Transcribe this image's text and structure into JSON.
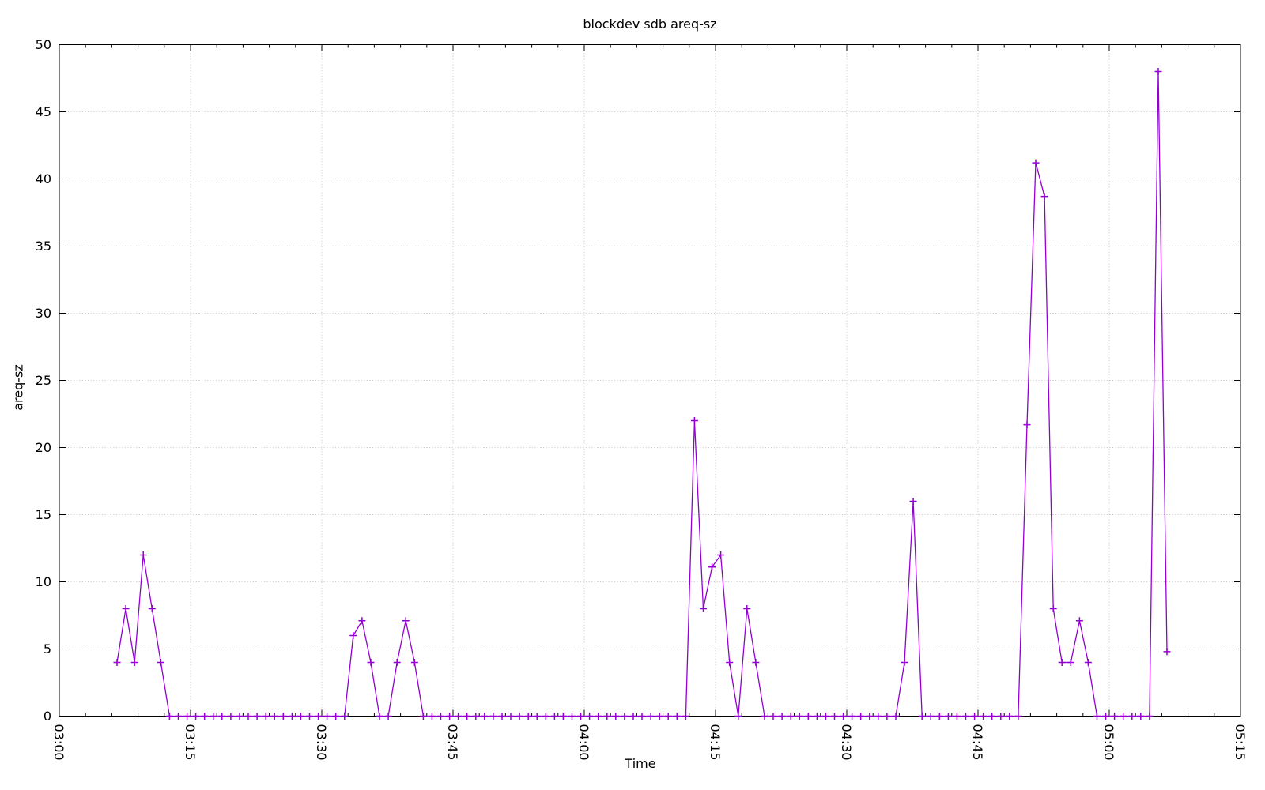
{
  "window": {
    "title": "blockdev sdb areq-sz"
  },
  "chart_data": {
    "type": "line",
    "title": "blockdev sdb areq-sz",
    "xlabel": "Time",
    "ylabel": "areq-sz",
    "legend": "none",
    "grid": "dotted",
    "line_color": "#9400d3",
    "marker": "plus",
    "x_axis": {
      "tick_labels": [
        "03:00",
        "03:15",
        "03:30",
        "03:45",
        "04:00",
        "04:15",
        "04:30",
        "04:45",
        "05:00",
        "05:15"
      ],
      "total_minutes": 135,
      "major_tick_minutes": 15,
      "minor_tick_minutes": 3,
      "tick_label_rotation_deg": 90
    },
    "y_axis": {
      "min": 0,
      "max": 50,
      "tick_interval": 5,
      "tick_labels": [
        "0",
        "5",
        "10",
        "15",
        "20",
        "25",
        "30",
        "35",
        "40",
        "45",
        "50"
      ]
    },
    "series": [
      {
        "name": "areq-sz",
        "x_unit": "minutes after 03:00",
        "points": [
          [
            6.6,
            4
          ],
          [
            7.6,
            8
          ],
          [
            8.6,
            4
          ],
          [
            9.6,
            12
          ],
          [
            10.6,
            8
          ],
          [
            11.6,
            4
          ],
          [
            12.6,
            0
          ],
          [
            13.6,
            0
          ],
          [
            14.6,
            0
          ],
          [
            15.6,
            0
          ],
          [
            16.6,
            0
          ],
          [
            17.6,
            0
          ],
          [
            18.6,
            0
          ],
          [
            19.6,
            0
          ],
          [
            20.6,
            0
          ],
          [
            21.6,
            0
          ],
          [
            22.6,
            0
          ],
          [
            23.6,
            0
          ],
          [
            24.6,
            0
          ],
          [
            25.6,
            0
          ],
          [
            26.6,
            0
          ],
          [
            27.6,
            0
          ],
          [
            28.6,
            0
          ],
          [
            29.6,
            0
          ],
          [
            30.6,
            0
          ],
          [
            31.6,
            0
          ],
          [
            32.6,
            0
          ],
          [
            33.6,
            6
          ],
          [
            34.6,
            7.1
          ],
          [
            35.6,
            4
          ],
          [
            36.6,
            0
          ],
          [
            37.6,
            0
          ],
          [
            38.6,
            4
          ],
          [
            39.6,
            7.1
          ],
          [
            40.6,
            4
          ],
          [
            41.6,
            0
          ],
          [
            42.6,
            0
          ],
          [
            43.6,
            0
          ],
          [
            44.6,
            0
          ],
          [
            45.6,
            0
          ],
          [
            46.6,
            0
          ],
          [
            47.6,
            0
          ],
          [
            48.6,
            0
          ],
          [
            49.6,
            0
          ],
          [
            50.6,
            0
          ],
          [
            51.6,
            0
          ],
          [
            52.6,
            0
          ],
          [
            53.6,
            0
          ],
          [
            54.6,
            0
          ],
          [
            55.6,
            0
          ],
          [
            56.6,
            0
          ],
          [
            57.6,
            0
          ],
          [
            58.6,
            0
          ],
          [
            59.6,
            0
          ],
          [
            60.6,
            0
          ],
          [
            61.6,
            0
          ],
          [
            62.6,
            0
          ],
          [
            63.6,
            0
          ],
          [
            64.6,
            0
          ],
          [
            65.6,
            0
          ],
          [
            66.6,
            0
          ],
          [
            67.6,
            0
          ],
          [
            68.6,
            0
          ],
          [
            69.6,
            0
          ],
          [
            70.6,
            0
          ],
          [
            71.6,
            0
          ],
          [
            72.6,
            22
          ],
          [
            73.6,
            8
          ],
          [
            74.6,
            11.1
          ],
          [
            75.6,
            12
          ],
          [
            76.6,
            4
          ],
          [
            77.6,
            0
          ],
          [
            78.6,
            8
          ],
          [
            79.6,
            4
          ],
          [
            80.6,
            0
          ],
          [
            81.6,
            0
          ],
          [
            82.6,
            0
          ],
          [
            83.6,
            0
          ],
          [
            84.6,
            0
          ],
          [
            85.6,
            0
          ],
          [
            86.6,
            0
          ],
          [
            87.6,
            0
          ],
          [
            88.6,
            0
          ],
          [
            89.6,
            0
          ],
          [
            90.6,
            0
          ],
          [
            91.6,
            0
          ],
          [
            92.6,
            0
          ],
          [
            93.6,
            0
          ],
          [
            94.6,
            0
          ],
          [
            95.6,
            0
          ],
          [
            96.6,
            4
          ],
          [
            97.6,
            16
          ],
          [
            98.6,
            0
          ],
          [
            99.6,
            0
          ],
          [
            100.6,
            0
          ],
          [
            101.6,
            0
          ],
          [
            102.6,
            0
          ],
          [
            103.6,
            0
          ],
          [
            104.6,
            0
          ],
          [
            105.6,
            0
          ],
          [
            106.6,
            0
          ],
          [
            107.6,
            0
          ],
          [
            108.6,
            0
          ],
          [
            109.6,
            0
          ],
          [
            110.6,
            21.7
          ],
          [
            111.6,
            41.2
          ],
          [
            112.6,
            38.7
          ],
          [
            113.6,
            8
          ],
          [
            114.6,
            4
          ],
          [
            115.6,
            4
          ],
          [
            116.6,
            7.1
          ],
          [
            117.6,
            4
          ],
          [
            118.6,
            0
          ],
          [
            119.6,
            0
          ],
          [
            120.6,
            0
          ],
          [
            121.6,
            0
          ],
          [
            122.6,
            0
          ],
          [
            123.6,
            0
          ],
          [
            124.6,
            0
          ],
          [
            125.6,
            48
          ],
          [
            126.6,
            4.8
          ]
        ]
      }
    ]
  }
}
